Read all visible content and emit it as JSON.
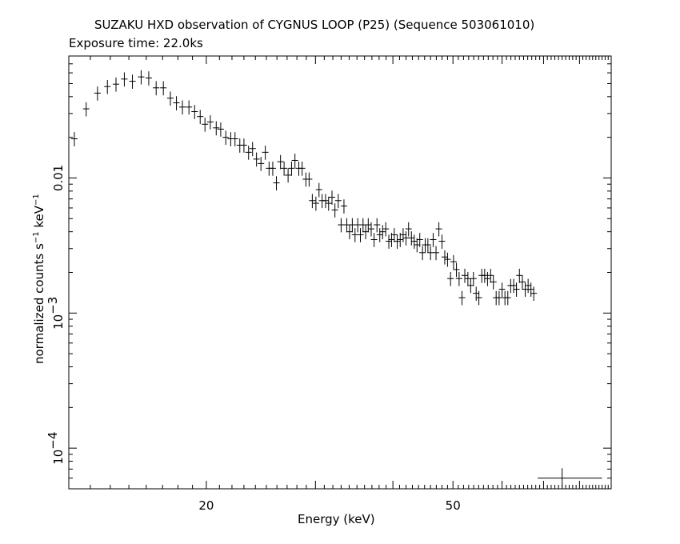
{
  "chart_data": {
    "type": "scatter",
    "title": "SUZAKU HXD observation of CYGNUS LOOP (P25) (Sequence 503061010)",
    "subtitle": "Exposure time: 22.0ks",
    "xlabel": "Energy (keV)",
    "ylabel": {
      "pre": "normalized counts s",
      "exp1": "−1",
      "mid": " keV",
      "exp2": "−1"
    },
    "xscale": "log",
    "yscale": "log",
    "xlim": [
      12,
      90
    ],
    "ylim": [
      5e-05,
      0.08
    ],
    "xticks": [
      {
        "value": 20,
        "label": "20"
      },
      {
        "value": 50,
        "label": "50"
      }
    ],
    "yticks": [
      {
        "value": 0.01,
        "base": "0.01",
        "exp": ""
      },
      {
        "value": 0.001,
        "base": "10",
        "exp": "−3"
      },
      {
        "value": 0.0001,
        "base": "10",
        "exp": "−4"
      }
    ],
    "series": [
      {
        "points": [
          [
            12.25,
            0.0195
          ],
          [
            12.8,
            0.0325
          ],
          [
            13.35,
            0.0425
          ],
          [
            13.85,
            0.0475
          ],
          [
            14.3,
            0.0495
          ],
          [
            14.75,
            0.054
          ],
          [
            15.2,
            0.052
          ],
          [
            15.7,
            0.056
          ],
          [
            16.15,
            0.055
          ],
          [
            16.6,
            0.0465
          ],
          [
            17.05,
            0.0465
          ],
          [
            17.5,
            0.039
          ],
          [
            17.9,
            0.036
          ],
          [
            18.3,
            0.0335
          ],
          [
            18.75,
            0.0335
          ],
          [
            19.15,
            0.031
          ],
          [
            19.55,
            0.0285
          ],
          [
            19.9,
            0.025
          ],
          [
            20.3,
            0.026
          ],
          [
            20.75,
            0.0235
          ],
          [
            21.1,
            0.023
          ],
          [
            21.5,
            0.02
          ],
          [
            21.9,
            0.0195
          ],
          [
            22.25,
            0.0195
          ],
          [
            22.65,
            0.0175
          ],
          [
            23.0,
            0.0175
          ],
          [
            23.4,
            0.0155
          ],
          [
            23.75,
            0.0165
          ],
          [
            24.1,
            0.0138
          ],
          [
            24.5,
            0.0128
          ],
          [
            24.9,
            0.0155
          ],
          [
            25.25,
            0.0118
          ],
          [
            25.6,
            0.0118
          ],
          [
            25.95,
            0.0092
          ],
          [
            26.35,
            0.0132
          ],
          [
            26.7,
            0.0118
          ],
          [
            27.1,
            0.0105
          ],
          [
            27.45,
            0.0118
          ],
          [
            27.8,
            0.0135
          ],
          [
            28.2,
            0.0118
          ],
          [
            28.55,
            0.0118
          ],
          [
            28.95,
            0.0098
          ],
          [
            29.3,
            0.0098
          ],
          [
            29.65,
            0.0068
          ],
          [
            30.05,
            0.0065
          ],
          [
            30.4,
            0.0082
          ],
          [
            30.75,
            0.0068
          ],
          [
            31.15,
            0.0068
          ],
          [
            31.5,
            0.0065
          ],
          [
            31.9,
            0.0072
          ],
          [
            32.25,
            0.0058
          ],
          [
            32.65,
            0.0068
          ],
          [
            33.0,
            0.0045
          ],
          [
            33.35,
            0.0062
          ],
          [
            33.7,
            0.0045
          ],
          [
            34.05,
            0.004
          ],
          [
            34.4,
            0.0045
          ],
          [
            34.75,
            0.0038
          ],
          [
            35.1,
            0.0045
          ],
          [
            35.45,
            0.0038
          ],
          [
            35.8,
            0.0045
          ],
          [
            36.15,
            0.004
          ],
          [
            36.5,
            0.0045
          ],
          [
            36.9,
            0.0042
          ],
          [
            37.3,
            0.0035
          ],
          [
            37.7,
            0.0045
          ],
          [
            38.1,
            0.0038
          ],
          [
            38.5,
            0.004
          ],
          [
            38.95,
            0.0042
          ],
          [
            39.4,
            0.0034
          ],
          [
            39.8,
            0.0035
          ],
          [
            40.2,
            0.0038
          ],
          [
            40.65,
            0.0034
          ],
          [
            41.1,
            0.0035
          ],
          [
            41.55,
            0.0038
          ],
          [
            42.0,
            0.0036
          ],
          [
            42.4,
            0.0042
          ],
          [
            42.85,
            0.0036
          ],
          [
            43.3,
            0.0034
          ],
          [
            43.75,
            0.0032
          ],
          [
            44.2,
            0.0035
          ],
          [
            44.65,
            0.0028
          ],
          [
            45.1,
            0.0032
          ],
          [
            45.55,
            0.0032
          ],
          [
            46.0,
            0.0028
          ],
          [
            46.45,
            0.0035
          ],
          [
            46.95,
            0.0028
          ],
          [
            47.45,
            0.0042
          ],
          [
            48.0,
            0.0034
          ],
          [
            48.5,
            0.0026
          ],
          [
            49.0,
            0.0025
          ],
          [
            49.55,
            0.0018
          ],
          [
            50.1,
            0.0024
          ],
          [
            50.65,
            0.0021
          ],
          [
            51.15,
            0.0018
          ],
          [
            51.7,
            0.0013
          ],
          [
            52.25,
            0.0019
          ],
          [
            52.85,
            0.0018
          ],
          [
            53.4,
            0.0016
          ],
          [
            53.95,
            0.0018
          ],
          [
            54.5,
            0.0014
          ],
          [
            55.05,
            0.0013
          ],
          [
            55.65,
            0.0019
          ],
          [
            56.25,
            0.0019
          ],
          [
            56.85,
            0.0018
          ],
          [
            57.5,
            0.0019
          ],
          [
            58.1,
            0.0017
          ],
          [
            58.7,
            0.0013
          ],
          [
            59.35,
            0.0013
          ],
          [
            60.0,
            0.0015
          ],
          [
            60.65,
            0.0013
          ],
          [
            61.3,
            0.0013
          ],
          [
            61.95,
            0.0016
          ],
          [
            62.65,
            0.0016
          ],
          [
            63.3,
            0.0015
          ],
          [
            64.0,
            0.0019
          ],
          [
            64.7,
            0.0017
          ],
          [
            65.4,
            0.0015
          ],
          [
            66.1,
            0.0016
          ],
          [
            66.8,
            0.0015
          ],
          [
            67.5,
            0.0014
          ]
        ],
        "xerr_frac": 0.012,
        "yerr_frac": 0.12,
        "reference_cross": {
          "x": 75,
          "y": 6e-05,
          "xlo": 68.5,
          "xhi": 87,
          "ylo": 5.1e-05,
          "yhi": 7.1e-05
        }
      }
    ]
  }
}
